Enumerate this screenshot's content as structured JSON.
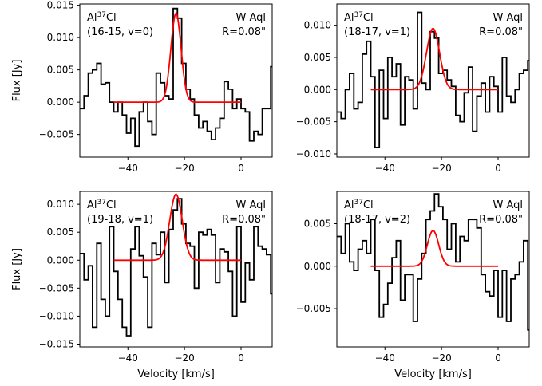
{
  "chart_data": [
    {
      "type": "line",
      "label_species": "Al",
      "label_iso": "37",
      "label_mol": "Cl",
      "transition": "(16-15, v=0)",
      "star": "W Aql",
      "radius": "R=0.08\"",
      "xlim": [
        -57,
        11
      ],
      "ylim": [
        -0.0085,
        0.0152
      ],
      "yticks": [
        -0.005,
        0.0,
        0.005,
        0.01,
        0.015
      ],
      "ytick_labels": [
        "−0.005",
        "0.000",
        "0.005",
        "0.010",
        "0.015"
      ],
      "xticks": [
        -40,
        -20,
        0
      ],
      "xtick_labels": [
        "−40",
        "−20",
        "0"
      ],
      "xlabel": "",
      "ylabel": "Flux [Jy]",
      "series": [
        {
          "color": "#000000",
          "style": "steps",
          "x": [
            -57,
            -55.5,
            -54,
            -52.5,
            -51,
            -49.5,
            -48,
            -46.5,
            -45,
            -43.5,
            -42,
            -40.5,
            -39,
            -37.5,
            -36,
            -34.5,
            -33,
            -31.5,
            -30,
            -28.5,
            -27,
            -25.5,
            -24,
            -22.5,
            -21,
            -19.5,
            -18,
            -16.5,
            -15,
            -13.5,
            -12,
            -10.5,
            -9,
            -7.5,
            -6,
            -4.5,
            -3,
            -1.5,
            0,
            1.5,
            3,
            4.5,
            6,
            7.5,
            9,
            10.5
          ],
          "y": [
            -0.001,
            0.001,
            0.0045,
            0.005,
            0.006,
            0.0028,
            0.003,
            0.0,
            -0.0015,
            0.0,
            -0.002,
            -0.0048,
            -0.0025,
            -0.0068,
            -0.0015,
            0.0,
            -0.003,
            -0.005,
            0.0045,
            0.003,
            0.001,
            0.0005,
            0.0145,
            0.013,
            0.006,
            0.002,
            0.0005,
            -0.002,
            -0.004,
            -0.003,
            -0.0045,
            -0.0058,
            -0.004,
            -0.0025,
            0.0032,
            0.002,
            -0.001,
            0.0005,
            -0.001,
            -0.0015,
            -0.006,
            -0.0045,
            -0.005,
            -0.001,
            -0.001,
            0.0055
          ]
        },
        {
          "color": "#ff0000",
          "style": "gauss",
          "x0": -45,
          "x1": 0,
          "amp": 0.0138,
          "mu": -23,
          "sigma": 1.8
        }
      ]
    },
    {
      "type": "line",
      "label_species": "Al",
      "label_iso": "37",
      "label_mol": "Cl",
      "transition": "(18-17, v=1)",
      "star": "W Aql",
      "radius": "R=0.08\"",
      "xlim": [
        -57,
        11
      ],
      "ylim": [
        -0.0105,
        0.0133
      ],
      "yticks": [
        -0.01,
        -0.005,
        0.0,
        0.005,
        0.01
      ],
      "ytick_labels": [
        "−0.010",
        "−0.005",
        "0.000",
        "0.005",
        "0.010"
      ],
      "xticks": [
        -40,
        -20,
        0
      ],
      "xtick_labels": [
        "−40",
        "−20",
        "0"
      ],
      "xlabel": "",
      "ylabel": "",
      "series": [
        {
          "color": "#000000",
          "style": "steps",
          "x": [
            -57,
            -55.5,
            -54,
            -52.5,
            -51,
            -49.5,
            -48,
            -46.5,
            -45,
            -43.5,
            -42,
            -40.5,
            -39,
            -37.5,
            -36,
            -34.5,
            -33,
            -31.5,
            -30,
            -28.5,
            -27,
            -25.5,
            -24,
            -22.5,
            -21,
            -19.5,
            -18,
            -16.5,
            -15,
            -13.5,
            -12,
            -10.5,
            -9,
            -7.5,
            -6,
            -4.5,
            -3,
            -1.5,
            0,
            1.5,
            3,
            4.5,
            6,
            7.5,
            9,
            10.5
          ],
          "y": [
            -0.0035,
            -0.0045,
            0.0,
            0.0025,
            -0.003,
            -0.002,
            0.0055,
            0.0075,
            0.002,
            -0.009,
            0.003,
            -0.0045,
            0.005,
            0.002,
            0.004,
            -0.0055,
            0.002,
            0.0015,
            -0.003,
            0.012,
            0.001,
            0.0,
            0.009,
            0.008,
            0.0025,
            0.003,
            0.0015,
            0.0005,
            -0.004,
            -0.005,
            -0.0005,
            0.0035,
            -0.0065,
            -0.001,
            0.001,
            -0.0035,
            0.002,
            0.0005,
            -0.0035,
            0.005,
            -0.001,
            -0.002,
            0.0,
            0.0025,
            0.003,
            0.0045
          ]
        },
        {
          "color": "#ff0000",
          "style": "gauss",
          "x0": -45,
          "x1": 0,
          "amp": 0.0095,
          "mu": -23,
          "sigma": 2.3
        }
      ]
    },
    {
      "type": "line",
      "label_species": "Al",
      "label_iso": "37",
      "label_mol": "Cl",
      "transition": "(19-18, v=1)",
      "star": "W Aql",
      "radius": "R=0.08\"",
      "xlim": [
        -57,
        11
      ],
      "ylim": [
        -0.0155,
        0.0123
      ],
      "yticks": [
        -0.015,
        -0.01,
        -0.005,
        0.0,
        0.005,
        0.01
      ],
      "ytick_labels": [
        "−0.015",
        "−0.010",
        "−0.005",
        "0.000",
        "0.005",
        "0.010"
      ],
      "xticks": [
        -40,
        -20,
        0
      ],
      "xtick_labels": [
        "−40",
        "−20",
        "0"
      ],
      "xlabel": "Velocity [km/s]",
      "ylabel": "Flux [Jy]",
      "series": [
        {
          "color": "#000000",
          "style": "steps",
          "x": [
            -57,
            -55.5,
            -54,
            -52.5,
            -51,
            -49.5,
            -48,
            -46.5,
            -45,
            -43.5,
            -42,
            -40.5,
            -39,
            -37.5,
            -36,
            -34.5,
            -33,
            -31.5,
            -30,
            -28.5,
            -27,
            -25.5,
            -24,
            -22.5,
            -21,
            -19.5,
            -18,
            -16.5,
            -15,
            -13.5,
            -12,
            -10.5,
            -9,
            -7.5,
            -6,
            -4.5,
            -3,
            -1.5,
            0,
            1.5,
            3,
            4.5,
            6,
            7.5,
            9,
            10.5
          ],
          "y": [
            0.0012,
            -0.0035,
            -0.001,
            -0.012,
            0.003,
            -0.007,
            -0.01,
            0.006,
            -0.002,
            -0.007,
            -0.012,
            -0.0135,
            0.002,
            0.006,
            0.0008,
            -0.003,
            -0.012,
            0.003,
            0.001,
            0.005,
            -0.004,
            0.0055,
            0.009,
            0.011,
            0.0065,
            0.003,
            0.0025,
            -0.005,
            0.005,
            0.0045,
            0.0055,
            0.0045,
            -0.004,
            0.002,
            0.0015,
            -0.002,
            -0.01,
            0.006,
            -0.0075,
            -0.0005,
            -0.0035,
            0.006,
            0.0025,
            0.002,
            0.001,
            -0.006
          ]
        },
        {
          "color": "#ff0000",
          "style": "gauss",
          "x0": -45,
          "x1": 0,
          "amp": 0.0118,
          "mu": -23,
          "sigma": 2.2
        }
      ]
    },
    {
      "type": "line",
      "label_species": "Al",
      "label_iso": "37",
      "label_mol": "Cl",
      "transition": "(18-17, v=2)",
      "star": "W Aql",
      "radius": "R=0.08\"",
      "xlim": [
        -57,
        11
      ],
      "ylim": [
        -0.0095,
        0.0088
      ],
      "yticks": [
        -0.005,
        0.0,
        0.005
      ],
      "ytick_labels": [
        "−0.005",
        "0.000",
        "0.005"
      ],
      "xticks": [
        -40,
        -20,
        0
      ],
      "xtick_labels": [
        "−40",
        "−20",
        "0"
      ],
      "xlabel": "Velocity [km/s]",
      "ylabel": "",
      "series": [
        {
          "color": "#000000",
          "style": "steps",
          "x": [
            -57,
            -55.5,
            -54,
            -52.5,
            -51,
            -49.5,
            -48,
            -46.5,
            -45,
            -43.5,
            -42,
            -40.5,
            -39,
            -37.5,
            -36,
            -34.5,
            -33,
            -31.5,
            -30,
            -28.5,
            -27,
            -25.5,
            -24,
            -22.5,
            -21,
            -19.5,
            -18,
            -16.5,
            -15,
            -13.5,
            -12,
            -10.5,
            -9,
            -7.5,
            -6,
            -4.5,
            -3,
            -1.5,
            0,
            1.5,
            3,
            4.5,
            6,
            7.5,
            9,
            10.5
          ],
          "y": [
            0.0035,
            0.0015,
            0.005,
            0.0005,
            -0.0005,
            0.002,
            0.003,
            0.0015,
            0.0055,
            -0.0005,
            -0.006,
            -0.0045,
            -0.002,
            0.001,
            0.003,
            -0.004,
            -0.001,
            -0.001,
            -0.0065,
            -0.0015,
            0.0015,
            0.0055,
            0.0065,
            0.0085,
            0.007,
            0.0055,
            0.002,
            0.005,
            0.0005,
            0.0035,
            0.003,
            0.0055,
            0.0055,
            0.0045,
            -0.001,
            -0.003,
            -0.0035,
            -0.0005,
            -0.006,
            -0.0005,
            -0.0065,
            -0.0015,
            -0.001,
            0.0005,
            0.003,
            -0.0075
          ]
        },
        {
          "color": "#ff0000",
          "style": "gauss",
          "x0": -45,
          "x1": 0,
          "amp": 0.0042,
          "mu": -23,
          "sigma": 2.0
        }
      ]
    }
  ]
}
